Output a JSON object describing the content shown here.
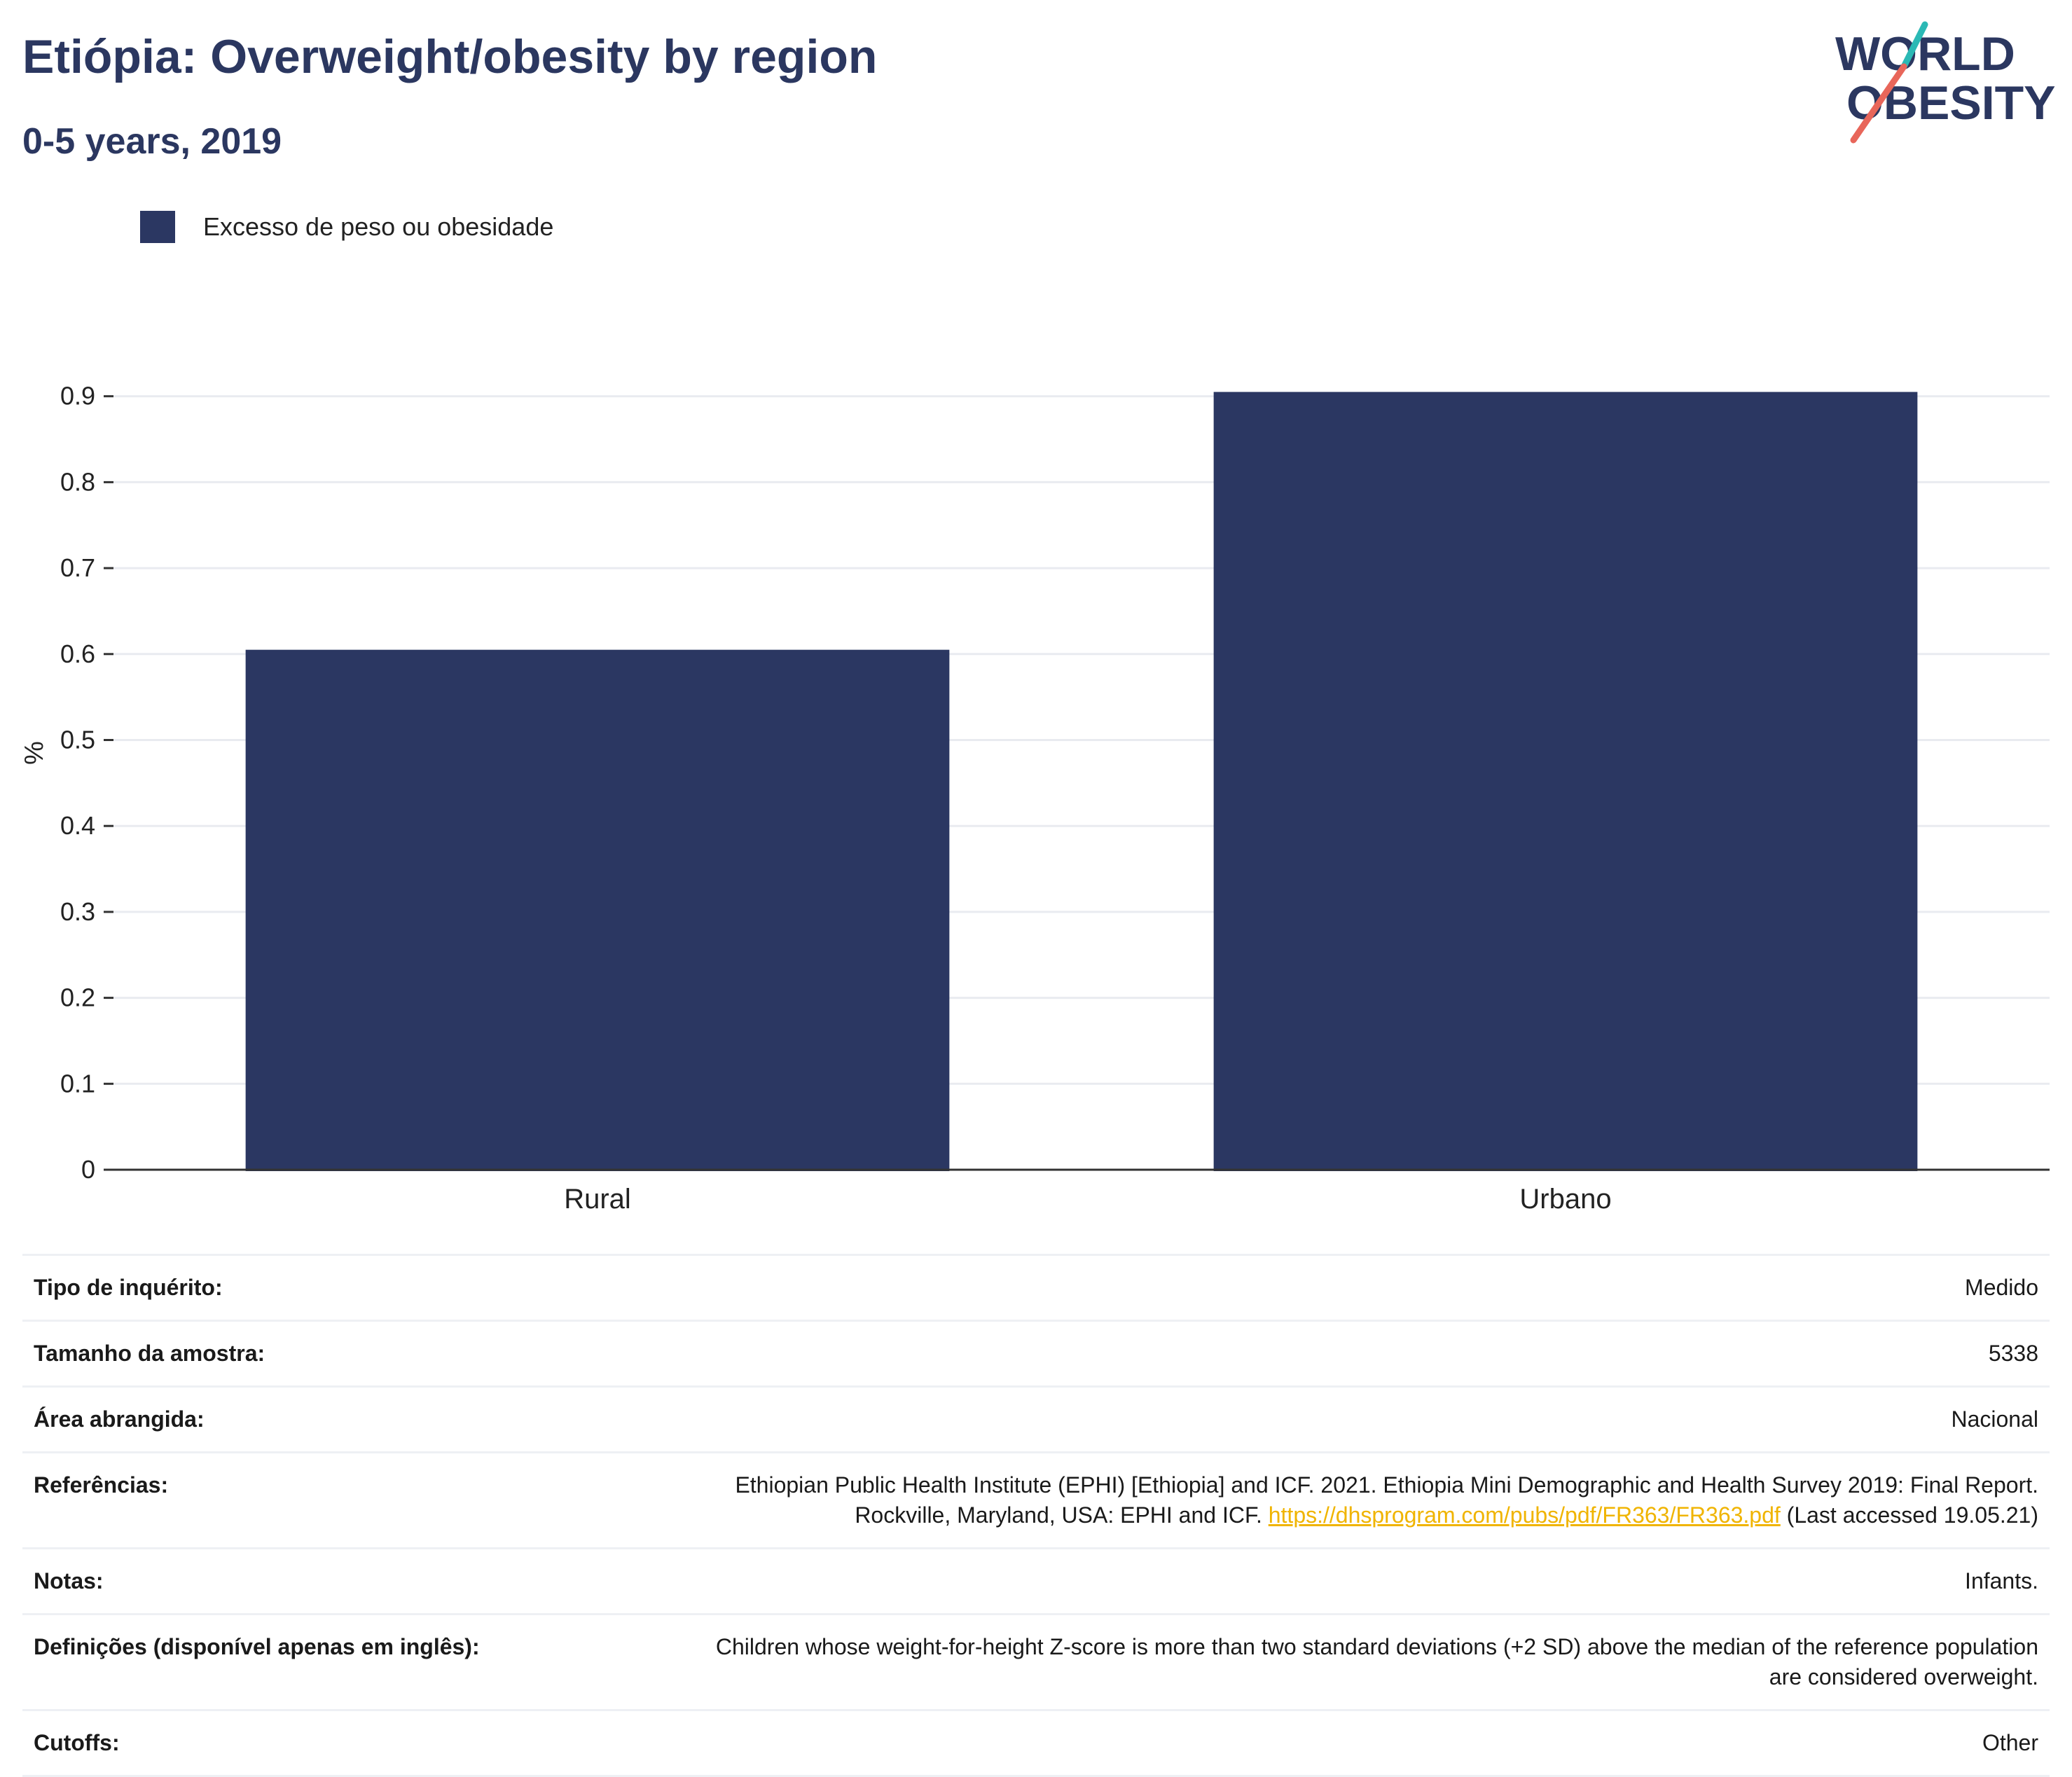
{
  "header": {
    "title": "Etiópia: Overweight/obesity by region",
    "subtitle": "0-5 years, 2019"
  },
  "logo": {
    "line1": "WORLD",
    "line2": "OBESITY",
    "colors": {
      "text": "#2b3760",
      "slash_teal": "#2bb9b5",
      "slash_red": "#e8665a"
    }
  },
  "colors": {
    "bar": "#2b3762",
    "grid": "#e9ebf0",
    "axis": "#333333",
    "link": "#f0b400"
  },
  "legend": {
    "label": "Excesso de peso ou obesidade"
  },
  "chart_data": {
    "type": "bar",
    "categories": [
      "Rural",
      "Urbano"
    ],
    "series": [
      {
        "name": "Excesso de peso ou obesidade",
        "values": [
          0.605,
          0.905
        ]
      }
    ],
    "ylabel": "%",
    "ylim": [
      0,
      0.95
    ],
    "yticks": [
      "0",
      "0.1",
      "0.2",
      "0.3",
      "0.4",
      "0.5",
      "0.6",
      "0.7",
      "0.8",
      "0.9"
    ],
    "grid": true,
    "legend_position": "top-left"
  },
  "meta": {
    "survey_type": {
      "label": "Tipo de inquérito:",
      "value": "Medido"
    },
    "sample_size": {
      "label": "Tamanho da amostra:",
      "value": "5338"
    },
    "area": {
      "label": "Área abrangida:",
      "value": "Nacional"
    },
    "references": {
      "label": "Referências:",
      "text_line1": "Ethiopian Public Health Institute (EPHI) [Ethiopia] and ICF. 2021. Ethiopia Mini Demographic and Health Survey 2019: Final Report.",
      "text_line2_prefix": "Rockville, Maryland, USA: EPHI and ICF.",
      "link": "https://dhsprogram.com/pubs/pdf/FR363/FR363.pdf",
      "suffix": "(Last accessed 19.05.21)"
    },
    "notes": {
      "label": "Notas:",
      "value": "Infants."
    },
    "definitions": {
      "label": "Definições (disponível apenas em inglês):",
      "line1": "Children whose weight-for-height Z-score is more than two standard deviations (+2 SD) above the median of the reference population",
      "line2": "are considered overweight."
    },
    "cutoffs": {
      "label": "Cutoffs:",
      "value": "Other"
    }
  }
}
